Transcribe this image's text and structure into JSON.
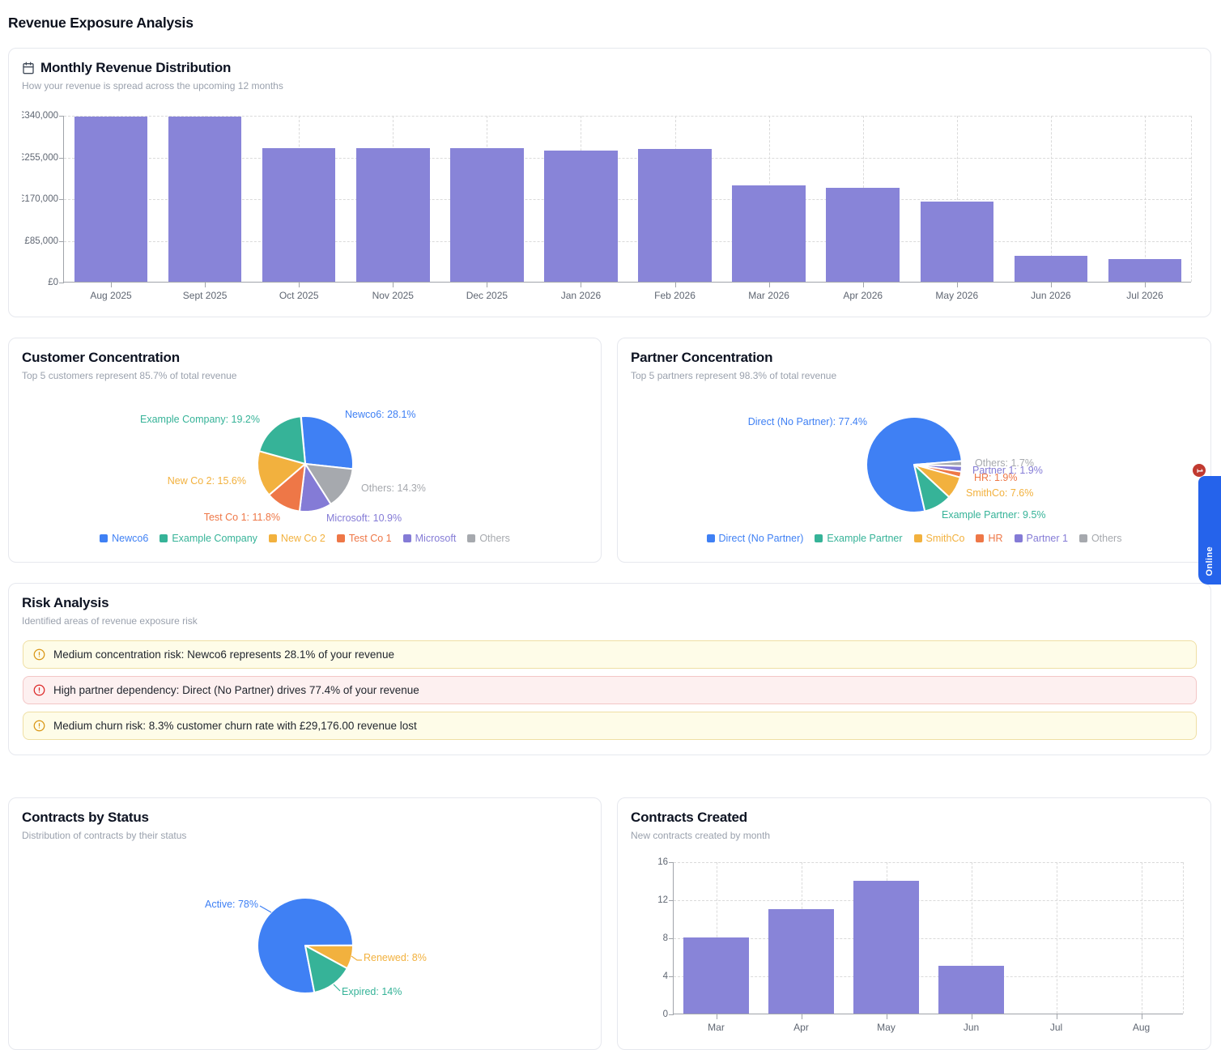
{
  "page": {
    "title": "Revenue Exposure Analysis"
  },
  "colors": {
    "blue": "#3f80f4",
    "teal": "#36b398",
    "yellow": "#f2b13e",
    "orange": "#ee7747",
    "purple": "#847bd6",
    "gray": "#a6a9ae",
    "bar": "#8884d8",
    "axis": "#a0a4aa",
    "online_tab": "#2563eb",
    "online_badge": "#c13a30"
  },
  "chart_data": [
    {
      "type": "bar",
      "title": "Monthly Revenue Distribution",
      "subtitle": "How your revenue is spread across the upcoming 12 months",
      "categories": [
        "Aug 2025",
        "Sept 2025",
        "Oct 2025",
        "Nov 2025",
        "Dec 2025",
        "Jan 2026",
        "Feb 2026",
        "Mar 2026",
        "Apr 2026",
        "May 2026",
        "Jun 2026",
        "Jul 2026"
      ],
      "values": [
        336000,
        336000,
        273000,
        273000,
        273000,
        268000,
        270000,
        197000,
        191000,
        163000,
        53000,
        46000
      ],
      "ylim": [
        0,
        340000
      ],
      "ytick_values": [
        0,
        85000,
        170000,
        255000,
        340000
      ],
      "ytick_labels": [
        "£0",
        "£85,000",
        "£170,000",
        "£255,000",
        "£340,000"
      ],
      "bar_color": "#8884d8",
      "grid": "dashed",
      "legend_position": "none"
    },
    {
      "type": "pie",
      "title": "Customer Concentration",
      "subtitle": "Top 5 customers represent 85.7% of total revenue",
      "start_angle": -5,
      "slices": [
        {
          "name": "Newco6",
          "pct": 28.1,
          "color": "blue"
        },
        {
          "name": "Others",
          "pct": 14.3,
          "color": "gray"
        },
        {
          "name": "Microsoft",
          "pct": 10.9,
          "color": "purple"
        },
        {
          "name": "Test Co 1",
          "pct": 11.8,
          "color": "orange"
        },
        {
          "name": "New Co 2",
          "pct": 15.6,
          "color": "yellow"
        },
        {
          "name": "Example Company",
          "pct": 19.2,
          "color": "teal"
        }
      ],
      "labels": [
        {
          "text": "Newco6: 28.1%",
          "color": "blue",
          "x": 415,
          "y": 94,
          "anchor": "start"
        },
        {
          "text": "Example Company: 19.2%",
          "color": "teal",
          "x": 310,
          "y": 100,
          "anchor": "end"
        },
        {
          "text": "New Co 2: 15.6%",
          "color": "yellow",
          "x": 293,
          "y": 176,
          "anchor": "end"
        },
        {
          "text": "Others: 14.3%",
          "color": "gray",
          "x": 435,
          "y": 185,
          "anchor": "start"
        },
        {
          "text": "Test Co 1: 11.8%",
          "color": "orange",
          "x": 335,
          "y": 221,
          "anchor": "end"
        },
        {
          "text": "Microsoft: 10.9%",
          "color": "purple",
          "x": 392,
          "y": 222,
          "anchor": "start"
        }
      ],
      "legend": [
        {
          "label": "Newco6",
          "color": "blue"
        },
        {
          "label": "Example Company",
          "color": "teal"
        },
        {
          "label": "New Co 2",
          "color": "yellow"
        },
        {
          "label": "Test Co 1",
          "color": "orange"
        },
        {
          "label": "Microsoft",
          "color": "purple"
        },
        {
          "label": "Others",
          "color": "gray"
        }
      ]
    },
    {
      "type": "pie",
      "title": "Partner Concentration",
      "subtitle": "Top 5 partners represent 98.3% of total revenue",
      "start_angle": 167,
      "slices": [
        {
          "name": "Direct (No Partner)",
          "pct": 77.4,
          "color": "blue"
        },
        {
          "name": "Others",
          "pct": 1.7,
          "color": "gray"
        },
        {
          "name": "Partner 1",
          "pct": 1.9,
          "color": "purple"
        },
        {
          "name": "HR",
          "pct": 1.9,
          "color": "orange"
        },
        {
          "name": "SmithCo",
          "pct": 7.6,
          "color": "yellow"
        },
        {
          "name": "Example Partner",
          "pct": 9.5,
          "color": "teal"
        }
      ],
      "labels": [
        {
          "text": "Direct (No Partner): 77.4%",
          "color": "blue",
          "x": 308,
          "y": 103,
          "anchor": "end"
        },
        {
          "text": "Others: 1.7%",
          "color": "gray",
          "x": 441,
          "y": 154,
          "anchor": "start"
        },
        {
          "text": "Partner 1: 1.9%",
          "color": "purple",
          "x": 438,
          "y": 163,
          "anchor": "start"
        },
        {
          "text": "HR: 1.9%",
          "color": "orange",
          "x": 440,
          "y": 172,
          "anchor": "start"
        },
        {
          "text": "SmithCo: 7.6%",
          "color": "yellow",
          "x": 430,
          "y": 191,
          "anchor": "start"
        },
        {
          "text": "Example Partner: 9.5%",
          "color": "teal",
          "x": 400,
          "y": 218,
          "anchor": "start"
        }
      ],
      "legend": [
        {
          "label": "Direct (No Partner)",
          "color": "blue"
        },
        {
          "label": "Example Partner",
          "color": "teal"
        },
        {
          "label": "SmithCo",
          "color": "yellow"
        },
        {
          "label": "HR",
          "color": "orange"
        },
        {
          "label": "Partner 1",
          "color": "purple"
        },
        {
          "label": "Others",
          "color": "gray"
        }
      ]
    },
    {
      "type": "pie",
      "title": "Contracts by Status",
      "subtitle": "Distribution of contracts by their status",
      "start_angle": 169,
      "slices": [
        {
          "name": "Active",
          "pct": 78,
          "color": "blue"
        },
        {
          "name": "Renewed",
          "pct": 8,
          "color": "yellow"
        },
        {
          "name": "Expired",
          "pct": 14,
          "color": "teal"
        }
      ],
      "labels": [
        {
          "text": "Active: 78%",
          "color": "blue",
          "x": 308,
          "y": 131,
          "anchor": "end"
        },
        {
          "text": "Renewed: 8%",
          "color": "yellow",
          "x": 438,
          "y": 197,
          "anchor": "start"
        },
        {
          "text": "Expired: 14%",
          "color": "teal",
          "x": 411,
          "y": 239,
          "anchor": "start"
        }
      ],
      "callout_lines": [
        {
          "color": "blue",
          "points": [
            [
              310,
              133
            ],
            [
              324,
              141
            ]
          ]
        },
        {
          "color": "yellow",
          "points": [
            [
              423,
              195
            ],
            [
              430,
              200
            ],
            [
              436,
              200
            ]
          ]
        },
        {
          "color": "teal",
          "points": [
            [
              401,
              230
            ],
            [
              409,
              238
            ]
          ]
        }
      ]
    },
    {
      "type": "bar",
      "title": "Contracts Created",
      "subtitle": "New contracts created by month",
      "categories": [
        "Mar",
        "Apr",
        "May",
        "Jun",
        "Jul",
        "Aug"
      ],
      "values": [
        8,
        11,
        14,
        5,
        0,
        0
      ],
      "ylim": [
        0,
        16
      ],
      "ytick_values": [
        0,
        4,
        8,
        12,
        16
      ],
      "ytick_labels": [
        "0",
        "4",
        "8",
        "12",
        "16"
      ],
      "bar_color": "#8884d8",
      "grid": "dashed",
      "legend_position": "none"
    }
  ],
  "risk_analysis": {
    "title": "Risk Analysis",
    "subtitle": "Identified areas of revenue exposure risk",
    "alerts": [
      {
        "severity": "medium",
        "text": "Medium concentration risk: Newco6 represents 28.1% of your revenue"
      },
      {
        "severity": "high",
        "text": "High partner dependency: Direct (No Partner) drives 77.4% of your revenue"
      },
      {
        "severity": "medium",
        "text": "Medium churn risk: 8.3% customer churn rate with £29,176.00 revenue lost"
      }
    ]
  },
  "online_widget": {
    "label": "Online",
    "badge": "1"
  }
}
